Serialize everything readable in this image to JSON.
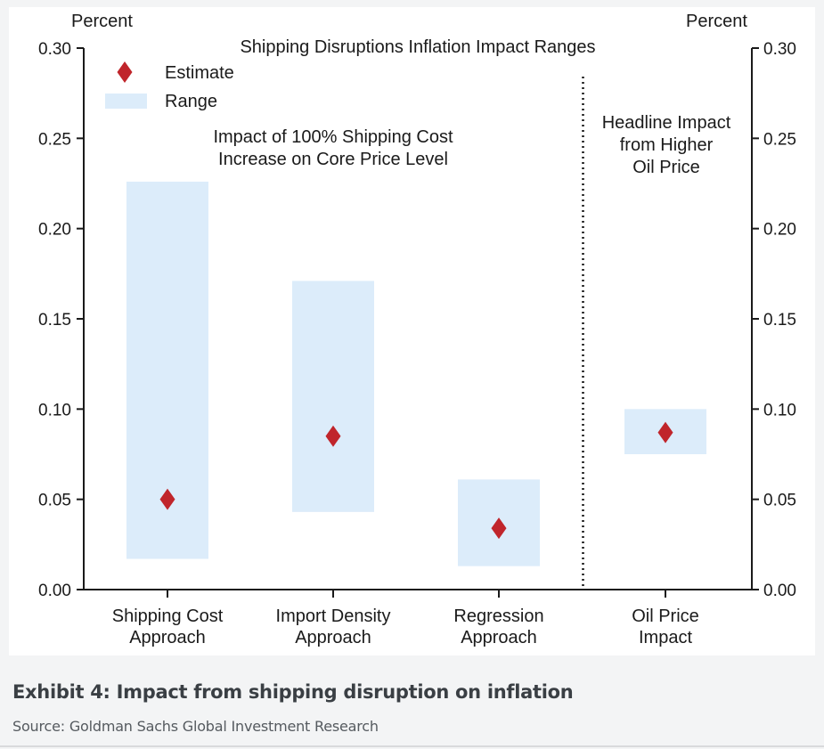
{
  "caption": {
    "title": "Exhibit 4: Impact from shipping disruption on inflation",
    "source": "Source: Goldman Sachs Global Investment Research"
  },
  "chart_data": {
    "type": "range-and-point",
    "title": "Shipping Disruptions Inflation Impact Ranges",
    "ylabel_left": "Percent",
    "ylabel_right": "Percent",
    "ylim": [
      0,
      0.3
    ],
    "yticks": [
      "0.00",
      "0.05",
      "0.10",
      "0.15",
      "0.20",
      "0.25",
      "0.30"
    ],
    "legend": {
      "placement": "top-left",
      "estimate_label": "Estimate",
      "range_label": "Range"
    },
    "annotations": {
      "left_group": [
        "Impact of 100% Shipping Cost",
        "Increase on Core Price Level"
      ],
      "right_group": [
        "Headline Impact",
        "from Higher",
        "Oil Price"
      ]
    },
    "categories": [
      [
        "Shipping Cost",
        "Approach"
      ],
      [
        "Import Density",
        "Approach"
      ],
      [
        "Regression",
        "Approach"
      ],
      [
        "Oil Price",
        "Impact"
      ]
    ],
    "series": [
      {
        "name": "Range",
        "low": [
          0.017,
          0.043,
          0.013,
          0.075
        ],
        "high": [
          0.226,
          0.171,
          0.061,
          0.1
        ]
      },
      {
        "name": "Estimate",
        "values": [
          0.05,
          0.085,
          0.034,
          0.087
        ]
      }
    ],
    "divider_after_category": 3,
    "colors": {
      "range": "#dcecfa",
      "estimate": "#c0252b",
      "axis": "#1a1a1a"
    }
  }
}
